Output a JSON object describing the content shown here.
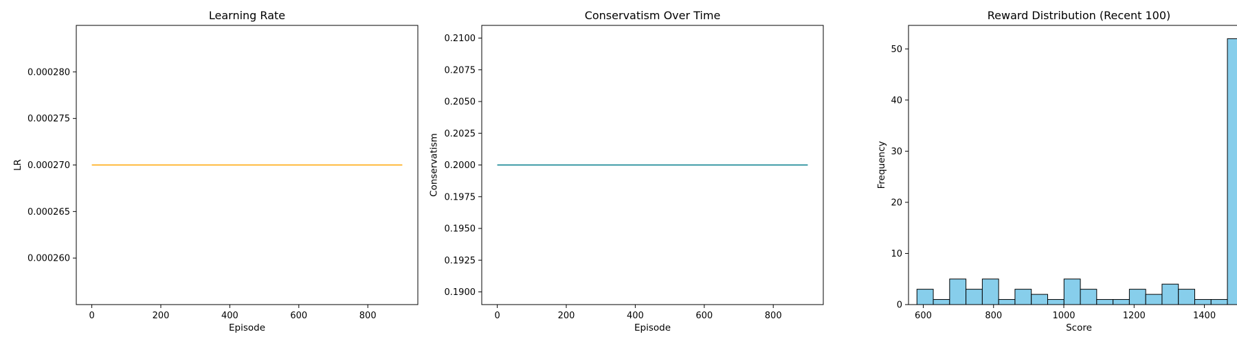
{
  "chart_data": [
    {
      "type": "line",
      "title": "Learning Rate",
      "xlabel": "Episode",
      "ylabel": "LR",
      "xlim": [
        -45,
        945
      ],
      "ylim": [
        0.000255,
        0.000285
      ],
      "xticks": [
        0,
        200,
        400,
        600,
        800
      ],
      "yticks": [
        0.00026,
        0.000265,
        0.00027,
        0.000275,
        0.00028
      ],
      "ytick_labels": [
        "0.000260",
        "0.000265",
        "0.000270",
        "0.000275",
        "0.000280"
      ],
      "series": [
        {
          "color": "#ffa500",
          "x": [
            0,
            900
          ],
          "y": [
            0.00027,
            0.00027
          ]
        }
      ],
      "grid": false
    },
    {
      "type": "line",
      "title": "Conservatism Over Time",
      "xlabel": "Episode",
      "ylabel": "Conservatism",
      "xlim": [
        -45,
        945
      ],
      "ylim": [
        0.189,
        0.211
      ],
      "xticks": [
        0,
        200,
        400,
        600,
        800
      ],
      "yticks": [
        0.19,
        0.1925,
        0.195,
        0.1975,
        0.2,
        0.2025,
        0.205,
        0.2075,
        0.21
      ],
      "ytick_labels": [
        "0.1900",
        "0.1925",
        "0.1950",
        "0.1975",
        "0.2000",
        "0.2025",
        "0.2050",
        "0.2075",
        "0.2100"
      ],
      "series": [
        {
          "color": "#007b8a",
          "x": [
            0,
            900
          ],
          "y": [
            0.2,
            0.2
          ]
        }
      ],
      "grid": false
    },
    {
      "type": "bar",
      "title": "Reward Distribution (Recent 100)",
      "xlabel": "Score",
      "ylabel": "Frequency",
      "xlim": [
        558,
        1528
      ],
      "ylim": [
        0,
        54.6
      ],
      "xticks": [
        600,
        800,
        1000,
        1200,
        1400
      ],
      "yticks": [
        0,
        10,
        20,
        30,
        40,
        50
      ],
      "bar_color": "#87ceeb",
      "edge_color": "#000000",
      "bins": [
        {
          "x0": 582,
          "x1": 628.5,
          "value": 3
        },
        {
          "x0": 628.5,
          "x1": 675,
          "value": 1
        },
        {
          "x0": 675,
          "x1": 721.5,
          "value": 5
        },
        {
          "x0": 721.5,
          "x1": 768,
          "value": 3
        },
        {
          "x0": 768,
          "x1": 814.5,
          "value": 5
        },
        {
          "x0": 814.5,
          "x1": 861,
          "value": 1
        },
        {
          "x0": 861,
          "x1": 907.5,
          "value": 3
        },
        {
          "x0": 907.5,
          "x1": 954,
          "value": 2
        },
        {
          "x0": 954,
          "x1": 1000.5,
          "value": 1
        },
        {
          "x0": 1000.5,
          "x1": 1047,
          "value": 5
        },
        {
          "x0": 1047,
          "x1": 1093.5,
          "value": 3
        },
        {
          "x0": 1093.5,
          "x1": 1140,
          "value": 1
        },
        {
          "x0": 1140,
          "x1": 1186.5,
          "value": 1
        },
        {
          "x0": 1186.5,
          "x1": 1233,
          "value": 3
        },
        {
          "x0": 1233,
          "x1": 1279.5,
          "value": 2
        },
        {
          "x0": 1279.5,
          "x1": 1326,
          "value": 4
        },
        {
          "x0": 1326,
          "x1": 1372.5,
          "value": 3
        },
        {
          "x0": 1372.5,
          "x1": 1419,
          "value": 1
        },
        {
          "x0": 1419,
          "x1": 1465.5,
          "value": 1
        },
        {
          "x0": 1465.5,
          "x1": 1512,
          "value": 52
        }
      ],
      "grid": false
    }
  ]
}
